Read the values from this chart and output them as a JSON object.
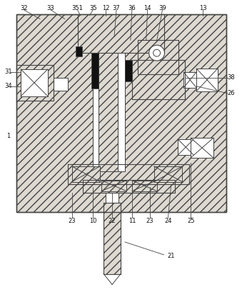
{
  "figsize": [
    3.39,
    4.3
  ],
  "dpi": 100,
  "hatch_fc": "#dedad2",
  "hatch_pattern": "///",
  "line_color": "#444444",
  "black": "#111111",
  "white": "#ffffff"
}
